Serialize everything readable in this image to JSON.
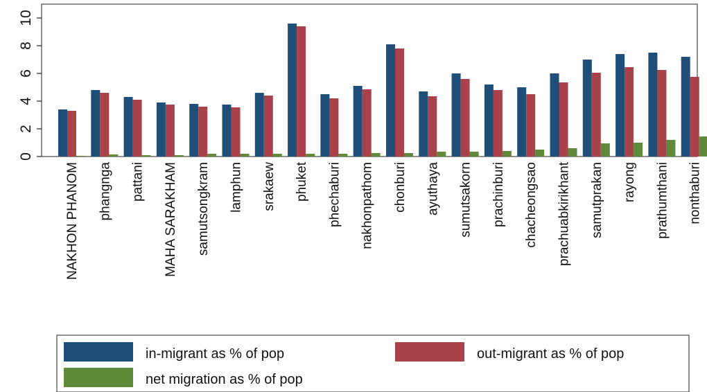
{
  "chart_data": {
    "type": "bar",
    "categories": [
      "NAKHON PHANOM",
      "phangnga",
      "pattani",
      "MAHA SARAKHAM",
      "samutsongkram",
      "lamphun",
      "srakaew",
      "phuket",
      "phechaburi",
      "nakhonpathom",
      "chonburi",
      "ayuthaya",
      "sumutsakorn",
      "prachinburi",
      "chacheongsao",
      "prachuabkirikhant",
      "samutprakan",
      "rayong",
      "prathumthani",
      "nonthaburi"
    ],
    "series": [
      {
        "name": "in-migrant as % of pop",
        "color": "#1f4e79",
        "values": [
          3.4,
          4.8,
          4.3,
          3.9,
          3.8,
          3.75,
          4.6,
          9.6,
          4.5,
          5.1,
          8.1,
          4.7,
          6.0,
          5.2,
          5.0,
          6.0,
          7.0,
          7.4,
          7.5,
          7.2
        ]
      },
      {
        "name": "out-migrant as % of pop",
        "color": "#a9424a",
        "values": [
          3.3,
          4.6,
          4.1,
          3.75,
          3.6,
          3.55,
          4.4,
          9.4,
          4.2,
          4.85,
          7.8,
          4.35,
          5.6,
          4.8,
          4.5,
          5.35,
          6.05,
          6.45,
          6.25,
          5.75
        ]
      },
      {
        "name": "net migration as % of pop",
        "color": "#5e8a3a",
        "values": [
          0.05,
          0.15,
          0.1,
          0.1,
          0.2,
          0.2,
          0.2,
          0.2,
          0.2,
          0.25,
          0.25,
          0.35,
          0.35,
          0.4,
          0.5,
          0.6,
          0.95,
          1.0,
          1.2,
          1.45
        ]
      }
    ],
    "yticks": [
      0,
      2,
      4,
      6,
      8,
      10
    ],
    "ylim": [
      0,
      11
    ],
    "grid": false,
    "legend_position": "bottom"
  }
}
